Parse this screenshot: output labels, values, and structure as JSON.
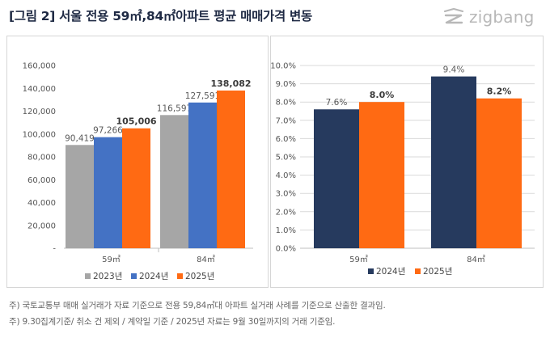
{
  "header": {
    "title": "[그림 2] 서울 전용 59㎡,84㎡아파트 평균 매매가격 변동",
    "brand": "zigbang"
  },
  "colors": {
    "y2023": "#a6a6a6",
    "y2024": "#4472c4",
    "y2025": "#ff6a13",
    "y2024_navy": "#263a5e",
    "title": "#1f2a44"
  },
  "chart_data": [
    {
      "type": "bar",
      "categories": [
        "59㎡",
        "84㎡"
      ],
      "series": [
        {
          "name": "2023년",
          "values": [
            90419,
            116597
          ],
          "labels": [
            "90,419",
            "116,597"
          ]
        },
        {
          "name": "2024년",
          "values": [
            97266,
            127591
          ],
          "labels": [
            "97,266",
            "127,591"
          ]
        },
        {
          "name": "2025년",
          "values": [
            105006,
            138082
          ],
          "labels": [
            "105,006",
            "138,082"
          ]
        }
      ],
      "ylim": [
        0,
        160000
      ],
      "yticks": [
        "-",
        "20,000",
        "40,000",
        "60,000",
        "80,000",
        "100,000",
        "120,000",
        "140,000",
        "160,000"
      ],
      "legend": "bottom"
    },
    {
      "type": "bar",
      "categories": [
        "59㎡",
        "84㎡"
      ],
      "series": [
        {
          "name": "2024년",
          "values": [
            7.6,
            9.4
          ],
          "labels": [
            "7.6%",
            "9.4%"
          ]
        },
        {
          "name": "2025년",
          "values": [
            8.0,
            8.2
          ],
          "labels": [
            "8.0%",
            "8.2%"
          ]
        }
      ],
      "ylim": [
        0,
        10
      ],
      "yticks": [
        "0.0%",
        "1.0%",
        "2.0%",
        "3.0%",
        "4.0%",
        "5.0%",
        "6.0%",
        "7.0%",
        "8.0%",
        "9.0%",
        "10.0%"
      ],
      "legend": "bottom"
    }
  ],
  "footnotes": [
    "주) 국토교통부 매매 실거래가 자료 기준으로 전용 59,84㎡대 아파트 실거래 사례를 기준으로 산출한 결과임.",
    "주) 9.30집계기준/ 취소 건 제외 / 계약일 기준 / 2025년 자료는 9월 30일까지의 거래 기준임."
  ]
}
